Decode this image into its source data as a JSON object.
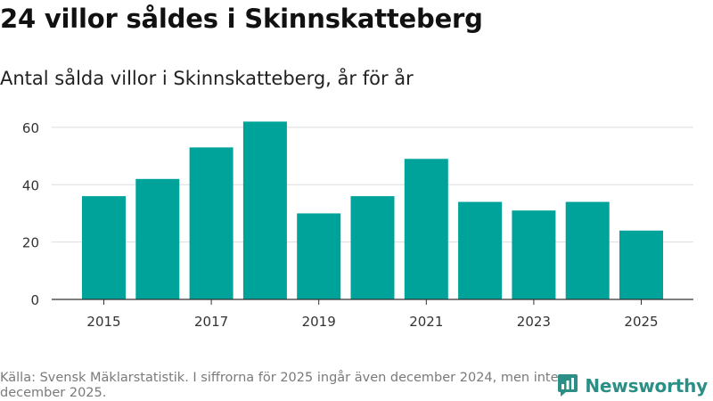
{
  "header": {
    "title": "24 villor såldes i Skinnskatteberg",
    "subtitle": "Antal sålda villor i Skinnskatteberg, år för år"
  },
  "footer": {
    "source": "Källa: Svensk Mäklarstatistik. I siffrorna för 2025 ingår även december 2024, men inte december 2025.",
    "brand": "Newsworthy"
  },
  "colors": {
    "bar": "#00a39a",
    "grid": "#dddddd",
    "axis": "#333333",
    "brand": "#2b8f85"
  },
  "chart_data": {
    "type": "bar",
    "title": "Antal sålda villor i Skinnskatteberg, år för år",
    "xlabel": "",
    "ylabel": "",
    "categories": [
      "2015",
      "2016",
      "2017",
      "2018",
      "2019",
      "2020",
      "2021",
      "2022",
      "2023",
      "2024",
      "2025"
    ],
    "values": [
      36,
      42,
      53,
      62,
      30,
      36,
      49,
      34,
      31,
      34,
      24
    ],
    "x_tick_labels": [
      "2015",
      "2017",
      "2019",
      "2021",
      "2023",
      "2025"
    ],
    "y_ticks": [
      0,
      20,
      40,
      60
    ],
    "y_tick_labels": [
      "0",
      "20",
      "40",
      "60"
    ],
    "ylim": [
      0,
      64
    ],
    "grid": true
  }
}
